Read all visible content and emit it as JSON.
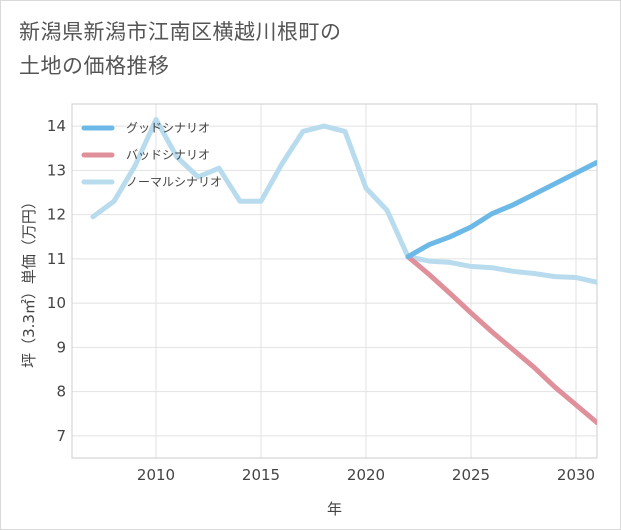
{
  "title_lines": [
    "新潟県新潟市江南区横越川根町の",
    "土地の価格推移"
  ],
  "chart_data": {
    "type": "line",
    "title": "新潟県新潟市江南区横越川根町の土地の価格推移",
    "xlabel": "年",
    "ylabel": "坪（3.3㎡）単価（万円）",
    "xlim": [
      2006,
      2031
    ],
    "ylim": [
      6.5,
      14.5
    ],
    "xticks": [
      2010,
      2015,
      2020,
      2025,
      2030
    ],
    "yticks": [
      7,
      8,
      9,
      10,
      11,
      12,
      13,
      14
    ],
    "grid": true,
    "legend_position": "top-left",
    "series": [
      {
        "name": "グッドシナリオ",
        "color": "#6cb9e8",
        "x": [
          2022,
          2023,
          2024,
          2025,
          2026,
          2027,
          2028,
          2029,
          2030,
          2031
        ],
        "values": [
          11.05,
          11.32,
          11.5,
          11.72,
          12.02,
          12.22,
          12.46,
          12.7,
          12.94,
          13.18
        ]
      },
      {
        "name": "バッドシナリオ",
        "color": "#e0909a",
        "x": [
          2022,
          2023,
          2024,
          2025,
          2026,
          2027,
          2028,
          2029,
          2030,
          2031
        ],
        "values": [
          11.05,
          10.65,
          10.22,
          9.78,
          9.35,
          8.95,
          8.55,
          8.1,
          7.7,
          7.3
        ]
      },
      {
        "name": "ノーマルシナリオ",
        "color": "#b8dcee",
        "x": [
          2007,
          2008,
          2009,
          2010,
          2011,
          2012,
          2013,
          2014,
          2015,
          2016,
          2017,
          2018,
          2019,
          2020,
          2021,
          2022,
          2023,
          2024,
          2025,
          2026,
          2027,
          2028,
          2029,
          2030,
          2031
        ],
        "values": [
          11.95,
          12.3,
          13.1,
          14.15,
          13.3,
          12.85,
          13.05,
          12.3,
          12.3,
          13.15,
          13.88,
          14.0,
          13.88,
          12.6,
          12.1,
          11.05,
          10.95,
          10.92,
          10.83,
          10.8,
          10.72,
          10.67,
          10.6,
          10.58,
          10.47
        ]
      }
    ]
  }
}
